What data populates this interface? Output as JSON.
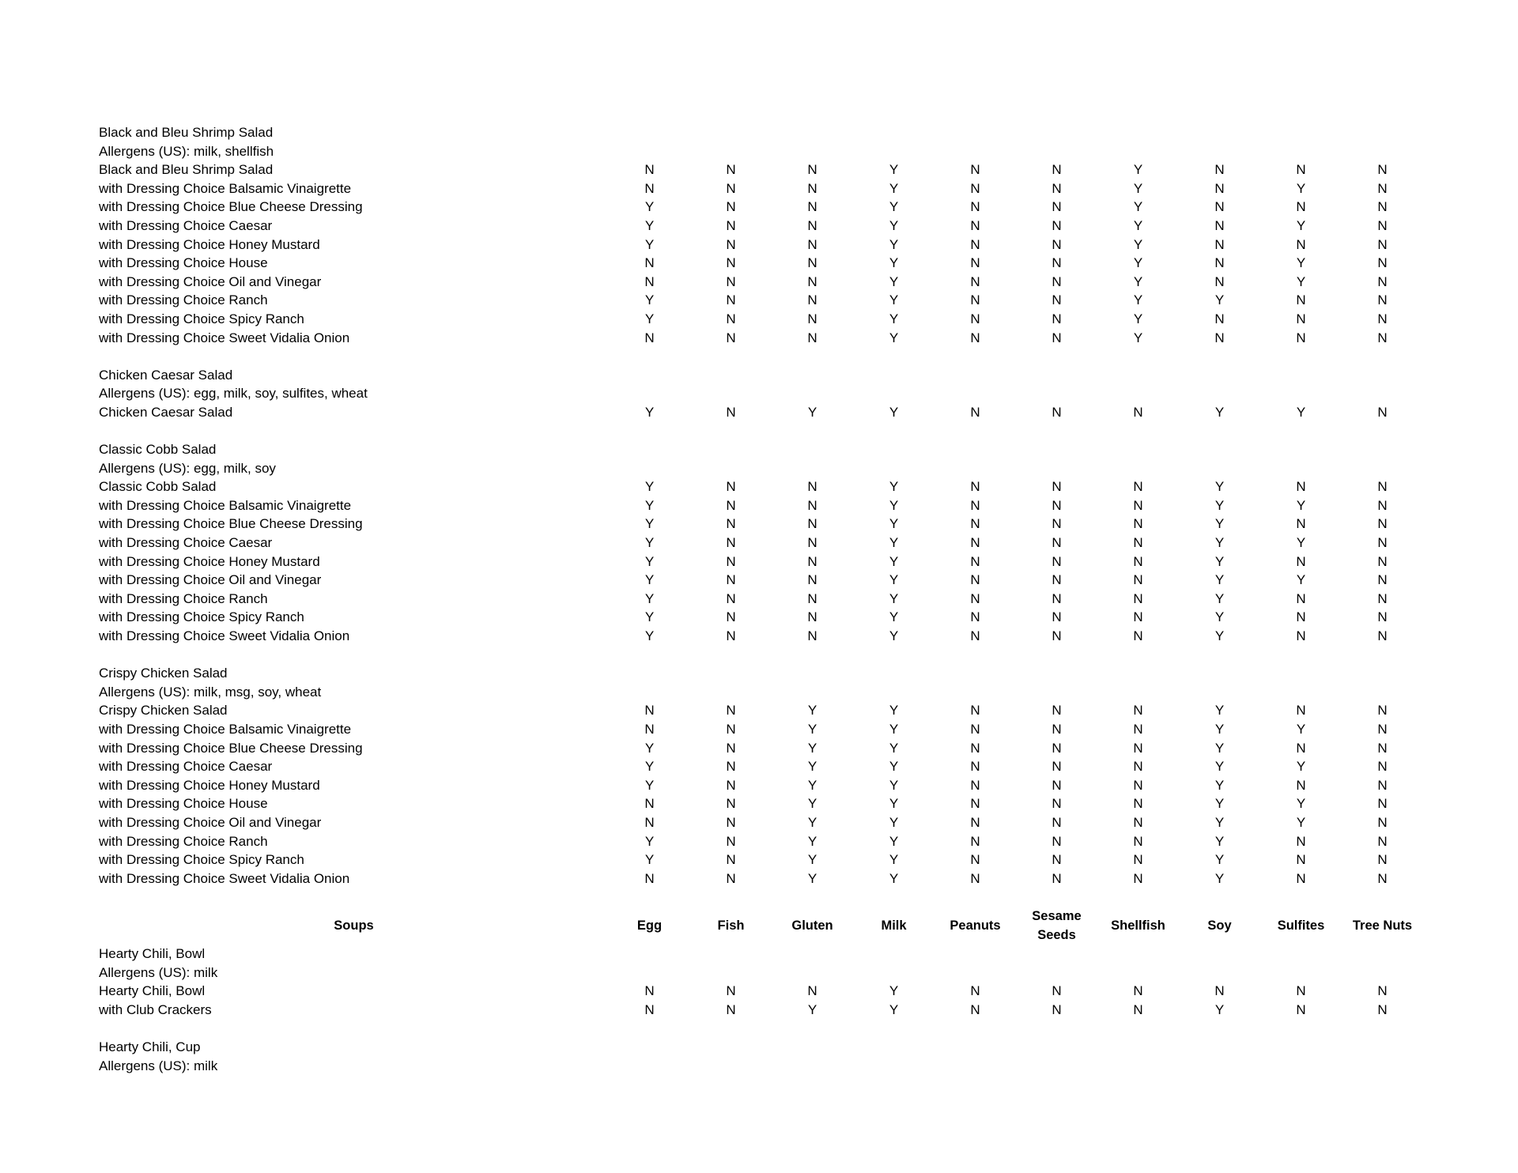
{
  "page": {
    "background_color": "#ffffff",
    "text_color": "#000000"
  },
  "columns": [
    "Egg",
    "Fish",
    "Gluten",
    "Milk",
    "Peanuts",
    "Sesame Seeds",
    "Shellfish",
    "Soy",
    "Sulfites",
    "Tree Nuts"
  ],
  "blocks": [
    {
      "type": "section",
      "title": "Black and Bleu Shrimp Salad",
      "allergens": "Allergens (US): milk, shellfish",
      "rows": [
        {
          "label": "Black and Bleu Shrimp Salad",
          "values": [
            "N",
            "N",
            "N",
            "Y",
            "N",
            "N",
            "Y",
            "N",
            "N",
            "N"
          ]
        },
        {
          "label": "with Dressing Choice Balsamic Vinaigrette",
          "values": [
            "N",
            "N",
            "N",
            "Y",
            "N",
            "N",
            "Y",
            "N",
            "Y",
            "N"
          ]
        },
        {
          "label": "with Dressing Choice Blue Cheese Dressing",
          "values": [
            "Y",
            "N",
            "N",
            "Y",
            "N",
            "N",
            "Y",
            "N",
            "N",
            "N"
          ]
        },
        {
          "label": "with Dressing Choice Caesar",
          "values": [
            "Y",
            "N",
            "N",
            "Y",
            "N",
            "N",
            "Y",
            "N",
            "Y",
            "N"
          ]
        },
        {
          "label": "with Dressing Choice Honey Mustard",
          "values": [
            "Y",
            "N",
            "N",
            "Y",
            "N",
            "N",
            "Y",
            "N",
            "N",
            "N"
          ]
        },
        {
          "label": "with Dressing Choice House",
          "values": [
            "N",
            "N",
            "N",
            "Y",
            "N",
            "N",
            "Y",
            "N",
            "Y",
            "N"
          ]
        },
        {
          "label": "with Dressing Choice Oil and Vinegar",
          "values": [
            "N",
            "N",
            "N",
            "Y",
            "N",
            "N",
            "Y",
            "N",
            "Y",
            "N"
          ]
        },
        {
          "label": "with Dressing Choice Ranch",
          "values": [
            "Y",
            "N",
            "N",
            "Y",
            "N",
            "N",
            "Y",
            "Y",
            "N",
            "N"
          ]
        },
        {
          "label": "with Dressing Choice Spicy Ranch",
          "values": [
            "Y",
            "N",
            "N",
            "Y",
            "N",
            "N",
            "Y",
            "N",
            "N",
            "N"
          ]
        },
        {
          "label": "with Dressing Choice Sweet Vidalia Onion",
          "values": [
            "N",
            "N",
            "N",
            "Y",
            "N",
            "N",
            "Y",
            "N",
            "N",
            "N"
          ]
        }
      ]
    },
    {
      "type": "section",
      "title": "Chicken Caesar Salad",
      "allergens": "Allergens (US): egg, milk, soy, sulfites, wheat",
      "rows": [
        {
          "label": "Chicken Caesar Salad",
          "values": [
            "Y",
            "N",
            "Y",
            "Y",
            "N",
            "N",
            "N",
            "Y",
            "Y",
            "N"
          ]
        }
      ]
    },
    {
      "type": "section",
      "title": "Classic Cobb Salad",
      "allergens": "Allergens (US): egg, milk, soy",
      "rows": [
        {
          "label": "Classic Cobb Salad",
          "values": [
            "Y",
            "N",
            "N",
            "Y",
            "N",
            "N",
            "N",
            "Y",
            "N",
            "N"
          ]
        },
        {
          "label": "with Dressing Choice Balsamic Vinaigrette",
          "values": [
            "Y",
            "N",
            "N",
            "Y",
            "N",
            "N",
            "N",
            "Y",
            "Y",
            "N"
          ]
        },
        {
          "label": "with Dressing Choice Blue Cheese Dressing",
          "values": [
            "Y",
            "N",
            "N",
            "Y",
            "N",
            "N",
            "N",
            "Y",
            "N",
            "N"
          ]
        },
        {
          "label": "with Dressing Choice Caesar",
          "values": [
            "Y",
            "N",
            "N",
            "Y",
            "N",
            "N",
            "N",
            "Y",
            "Y",
            "N"
          ]
        },
        {
          "label": "with Dressing Choice Honey Mustard",
          "values": [
            "Y",
            "N",
            "N",
            "Y",
            "N",
            "N",
            "N",
            "Y",
            "N",
            "N"
          ]
        },
        {
          "label": "with Dressing Choice Oil and Vinegar",
          "values": [
            "Y",
            "N",
            "N",
            "Y",
            "N",
            "N",
            "N",
            "Y",
            "Y",
            "N"
          ]
        },
        {
          "label": "with Dressing Choice Ranch",
          "values": [
            "Y",
            "N",
            "N",
            "Y",
            "N",
            "N",
            "N",
            "Y",
            "N",
            "N"
          ]
        },
        {
          "label": "with Dressing Choice Spicy Ranch",
          "values": [
            "Y",
            "N",
            "N",
            "Y",
            "N",
            "N",
            "N",
            "Y",
            "N",
            "N"
          ]
        },
        {
          "label": "with Dressing Choice Sweet Vidalia Onion",
          "values": [
            "Y",
            "N",
            "N",
            "Y",
            "N",
            "N",
            "N",
            "Y",
            "N",
            "N"
          ]
        }
      ]
    },
    {
      "type": "section",
      "title": "Crispy Chicken Salad",
      "allergens": "Allergens (US): milk, msg, soy, wheat",
      "rows": [
        {
          "label": "Crispy Chicken Salad",
          "values": [
            "N",
            "N",
            "Y",
            "Y",
            "N",
            "N",
            "N",
            "Y",
            "N",
            "N"
          ]
        },
        {
          "label": "with Dressing Choice Balsamic Vinaigrette",
          "values": [
            "N",
            "N",
            "Y",
            "Y",
            "N",
            "N",
            "N",
            "Y",
            "Y",
            "N"
          ]
        },
        {
          "label": "with Dressing Choice Blue Cheese Dressing",
          "values": [
            "Y",
            "N",
            "Y",
            "Y",
            "N",
            "N",
            "N",
            "Y",
            "N",
            "N"
          ]
        },
        {
          "label": "with Dressing Choice Caesar",
          "values": [
            "Y",
            "N",
            "Y",
            "Y",
            "N",
            "N",
            "N",
            "Y",
            "Y",
            "N"
          ]
        },
        {
          "label": "with Dressing Choice Honey Mustard",
          "values": [
            "Y",
            "N",
            "Y",
            "Y",
            "N",
            "N",
            "N",
            "Y",
            "N",
            "N"
          ]
        },
        {
          "label": "with Dressing Choice House",
          "values": [
            "N",
            "N",
            "Y",
            "Y",
            "N",
            "N",
            "N",
            "Y",
            "Y",
            "N"
          ]
        },
        {
          "label": "with Dressing Choice Oil and Vinegar",
          "values": [
            "N",
            "N",
            "Y",
            "Y",
            "N",
            "N",
            "N",
            "Y",
            "Y",
            "N"
          ]
        },
        {
          "label": "with Dressing Choice Ranch",
          "values": [
            "Y",
            "N",
            "Y",
            "Y",
            "N",
            "N",
            "N",
            "Y",
            "N",
            "N"
          ]
        },
        {
          "label": "with Dressing Choice Spicy Ranch",
          "values": [
            "Y",
            "N",
            "Y",
            "Y",
            "N",
            "N",
            "N",
            "Y",
            "N",
            "N"
          ]
        },
        {
          "label": "with Dressing Choice Sweet Vidalia Onion",
          "values": [
            "N",
            "N",
            "Y",
            "Y",
            "N",
            "N",
            "N",
            "Y",
            "N",
            "N"
          ]
        }
      ]
    },
    {
      "type": "column_header",
      "group_label": "Soups"
    },
    {
      "type": "section",
      "title": "Hearty Chili, Bowl",
      "allergens": "Allergens (US): milk",
      "rows": [
        {
          "label": "Hearty Chili, Bowl",
          "values": [
            "N",
            "N",
            "N",
            "Y",
            "N",
            "N",
            "N",
            "N",
            "N",
            "N"
          ]
        },
        {
          "label": "with Club Crackers",
          "values": [
            "N",
            "N",
            "Y",
            "Y",
            "N",
            "N",
            "N",
            "Y",
            "N",
            "N"
          ]
        }
      ]
    },
    {
      "type": "section",
      "title": "Hearty Chili, Cup",
      "allergens": "Allergens (US): milk",
      "rows": []
    }
  ]
}
